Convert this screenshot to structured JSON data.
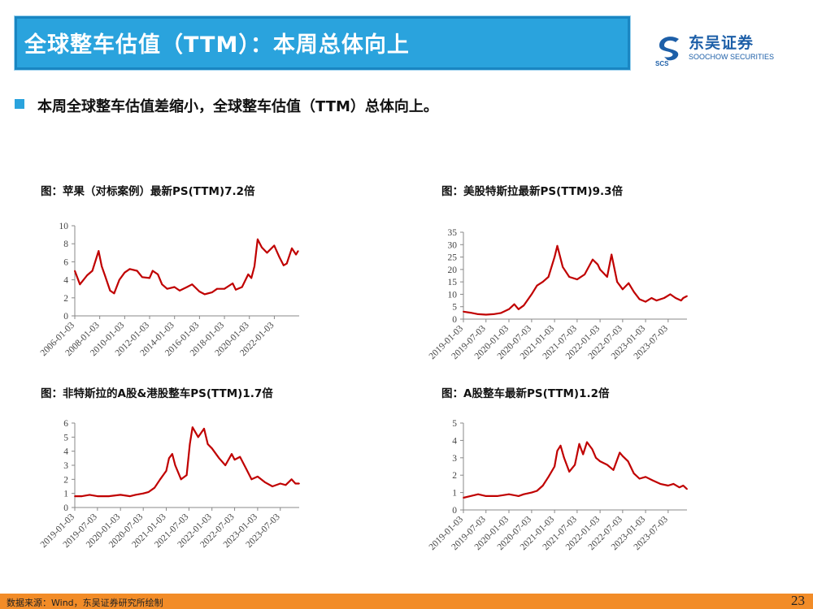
{
  "header": {
    "title": "全球整车估值（TTM）：本周总体向上",
    "logo_cn": "东吴证券",
    "logo_en": "SOOCHOW SECURITIES",
    "logo_mark_text": "SCS"
  },
  "summary": {
    "bullet": "本周全球整车估值差缩小，全球整车估值（TTM）总体向上。"
  },
  "footer": {
    "source": "数据来源：Wind，东吴证券研究所绘制",
    "page_number": "23"
  },
  "colors": {
    "title_bar": "#2aa3dd",
    "series": "#c00000",
    "footer_bar": "#f28c28",
    "logo": "#1d5fa8"
  },
  "chart_data": [
    {
      "type": "line",
      "title": "图：苹果（对标案例）最新PS(TTM)7.2倍",
      "xlabel": "",
      "ylabel": "",
      "ylim": [
        0,
        10
      ],
      "yticks": [
        "0",
        "2",
        "4",
        "6",
        "8",
        "10"
      ],
      "x_ticks": [
        "2006-01-03",
        "2008-01-03",
        "2010-01-03",
        "2012-01-03",
        "2014-01-03",
        "2016-01-03",
        "2018-01-03",
        "2020-01-03",
        "2022-01-03"
      ],
      "x_range": [
        "2006-01-03",
        "2024-01-01"
      ],
      "series": [
        {
          "x": [
            "2006-01-03",
            "2006-06-01",
            "2007-01-01",
            "2007-06-01",
            "2007-12-01",
            "2008-03-01",
            "2008-06-01",
            "2008-11-01",
            "2009-03-01",
            "2009-08-01",
            "2010-01-01",
            "2010-06-01",
            "2011-01-01",
            "2011-06-01",
            "2012-01-01",
            "2012-04-01",
            "2012-09-01",
            "2013-01-01",
            "2013-06-01",
            "2014-01-01",
            "2014-06-01",
            "2015-01-01",
            "2015-06-01",
            "2016-01-01",
            "2016-06-01",
            "2017-01-01",
            "2017-06-01",
            "2018-01-01",
            "2018-09-01",
            "2018-12-01",
            "2019-06-01",
            "2019-12-01",
            "2020-03-01",
            "2020-06-01",
            "2020-09-01",
            "2021-01-01",
            "2021-06-01",
            "2022-01-01",
            "2022-06-01",
            "2022-10-01",
            "2023-01-01",
            "2023-06-01",
            "2023-10-01",
            "2023-12-01"
          ],
          "values": [
            5.0,
            3.5,
            4.5,
            5.0,
            7.2,
            5.5,
            4.5,
            2.8,
            2.5,
            4.0,
            4.8,
            5.2,
            5.0,
            4.3,
            4.2,
            5.0,
            4.6,
            3.5,
            3.0,
            3.2,
            2.8,
            3.2,
            3.5,
            2.7,
            2.4,
            2.6,
            3.0,
            3.0,
            3.6,
            2.9,
            3.2,
            4.6,
            4.2,
            5.5,
            8.5,
            7.6,
            7.0,
            7.8,
            6.5,
            5.6,
            5.8,
            7.5,
            6.8,
            7.2
          ]
        }
      ]
    },
    {
      "type": "line",
      "title": "图：美股特斯拉最新PS(TTM)9.3倍",
      "xlabel": "",
      "ylabel": "",
      "ylim": [
        0,
        35
      ],
      "yticks": [
        "0",
        "5",
        "10",
        "15",
        "20",
        "25",
        "30",
        "35"
      ],
      "x_ticks": [
        "2019-01-03",
        "2019-07-03",
        "2020-01-03",
        "2020-07-03",
        "2021-01-03",
        "2021-07-03",
        "2022-01-03",
        "2022-07-03",
        "2023-01-03",
        "2023-07-03"
      ],
      "x_range": [
        "2019-01-03",
        "2023-12-01"
      ],
      "series": [
        {
          "x": [
            "2019-01-03",
            "2019-03-01",
            "2019-05-01",
            "2019-07-03",
            "2019-09-01",
            "2019-11-01",
            "2020-01-03",
            "2020-02-15",
            "2020-03-20",
            "2020-05-01",
            "2020-07-03",
            "2020-08-15",
            "2020-10-01",
            "2020-11-15",
            "2021-01-03",
            "2021-01-25",
            "2021-03-10",
            "2021-05-01",
            "2021-07-03",
            "2021-09-01",
            "2021-11-05",
            "2021-12-15",
            "2022-01-03",
            "2022-03-01",
            "2022-04-05",
            "2022-05-20",
            "2022-07-03",
            "2022-08-20",
            "2022-10-01",
            "2022-11-15",
            "2023-01-03",
            "2023-02-20",
            "2023-04-01",
            "2023-06-01",
            "2023-07-20",
            "2023-09-01",
            "2023-10-15",
            "2023-11-01",
            "2023-12-01"
          ],
          "values": [
            3.0,
            2.6,
            2.0,
            1.8,
            2.0,
            2.5,
            4.0,
            6.0,
            4.0,
            5.5,
            10.0,
            13.5,
            15.0,
            17.0,
            25.0,
            29.5,
            21.0,
            17.0,
            16.0,
            18.0,
            24.0,
            22.0,
            20.0,
            17.0,
            26.0,
            15.0,
            12.0,
            14.5,
            11.0,
            8.0,
            7.0,
            8.5,
            7.5,
            8.5,
            10.0,
            8.5,
            7.5,
            8.5,
            9.3
          ]
        }
      ]
    },
    {
      "type": "line",
      "title": "图：非特斯拉的A股&港股整车PS(TTM)1.7倍",
      "xlabel": "",
      "ylabel": "",
      "ylim": [
        0,
        6
      ],
      "yticks": [
        "0",
        "1",
        "2",
        "3",
        "4",
        "5",
        "6"
      ],
      "x_ticks": [
        "2019-01-03",
        "2019-07-03",
        "2020-01-03",
        "2020-07-03",
        "2021-01-03",
        "2021-07-03",
        "2022-01-03",
        "2022-07-03",
        "2023-01-03",
        "2023-07-03"
      ],
      "x_range": [
        "2019-01-03",
        "2023-12-01"
      ],
      "series": [
        {
          "x": [
            "2019-01-03",
            "2019-03-01",
            "2019-05-01",
            "2019-07-03",
            "2019-10-01",
            "2020-01-03",
            "2020-03-20",
            "2020-05-01",
            "2020-07-03",
            "2020-08-15",
            "2020-10-01",
            "2020-11-15",
            "2021-01-03",
            "2021-01-25",
            "2021-02-20",
            "2021-03-15",
            "2021-05-01",
            "2021-06-15",
            "2021-07-10",
            "2021-08-01",
            "2021-09-15",
            "2021-11-01",
            "2021-12-01",
            "2022-01-03",
            "2022-03-01",
            "2022-04-20",
            "2022-06-10",
            "2022-07-03",
            "2022-08-15",
            "2022-10-01",
            "2022-11-15",
            "2023-01-03",
            "2023-03-01",
            "2023-05-01",
            "2023-07-03",
            "2023-08-15",
            "2023-10-01",
            "2023-11-01",
            "2023-12-01"
          ],
          "values": [
            0.8,
            0.8,
            0.9,
            0.8,
            0.8,
            0.9,
            0.8,
            0.9,
            1.0,
            1.1,
            1.4,
            2.0,
            2.6,
            3.5,
            3.8,
            3.0,
            2.0,
            2.3,
            4.5,
            5.7,
            5.0,
            5.6,
            4.5,
            4.2,
            3.5,
            3.0,
            3.8,
            3.4,
            3.6,
            2.8,
            2.0,
            2.2,
            1.8,
            1.5,
            1.7,
            1.6,
            2.0,
            1.7,
            1.7
          ]
        }
      ]
    },
    {
      "type": "line",
      "title": "图：A股整车最新PS(TTM)1.2倍",
      "xlabel": "",
      "ylabel": "",
      "ylim": [
        0,
        5
      ],
      "yticks": [
        "0",
        "1",
        "2",
        "3",
        "4",
        "5"
      ],
      "x_ticks": [
        "2019-01-03",
        "2019-07-03",
        "2020-01-03",
        "2020-07-03",
        "2021-01-03",
        "2021-07-03",
        "2022-01-03",
        "2022-07-03",
        "2023-01-03",
        "2023-07-03"
      ],
      "x_range": [
        "2019-01-03",
        "2023-12-01"
      ],
      "series": [
        {
          "x": [
            "2019-01-03",
            "2019-03-01",
            "2019-05-01",
            "2019-07-03",
            "2019-10-01",
            "2020-01-03",
            "2020-03-20",
            "2020-05-01",
            "2020-07-03",
            "2020-08-15",
            "2020-10-01",
            "2020-11-15",
            "2021-01-03",
            "2021-01-25",
            "2021-02-20",
            "2021-03-20",
            "2021-05-01",
            "2021-06-15",
            "2021-07-20",
            "2021-08-20",
            "2021-09-20",
            "2021-11-01",
            "2021-12-01",
            "2022-01-03",
            "2022-03-01",
            "2022-04-20",
            "2022-06-10",
            "2022-07-03",
            "2022-08-15",
            "2022-10-01",
            "2022-11-15",
            "2023-01-03",
            "2023-03-01",
            "2023-05-01",
            "2023-07-03",
            "2023-08-15",
            "2023-10-01",
            "2023-11-01",
            "2023-12-01"
          ],
          "values": [
            0.7,
            0.8,
            0.9,
            0.8,
            0.8,
            0.9,
            0.8,
            0.9,
            1.0,
            1.1,
            1.4,
            1.9,
            2.5,
            3.4,
            3.7,
            3.0,
            2.2,
            2.6,
            3.8,
            3.2,
            3.9,
            3.5,
            3.0,
            2.8,
            2.6,
            2.3,
            3.3,
            3.1,
            2.8,
            2.1,
            1.8,
            1.9,
            1.7,
            1.5,
            1.4,
            1.5,
            1.3,
            1.4,
            1.2
          ]
        }
      ]
    }
  ]
}
